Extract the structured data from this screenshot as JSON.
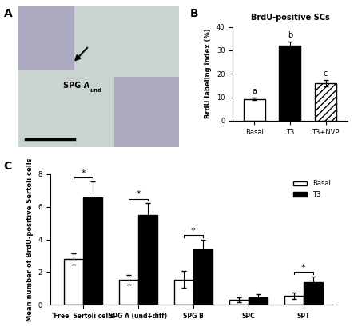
{
  "panel_labels": [
    "A",
    "B",
    "C"
  ],
  "image_panel": {
    "label": "SPG A",
    "label_subscript": "und"
  },
  "chart_data": [
    {
      "type": "bar",
      "title": "BrdU-positive SCs",
      "y_label": "BrdU labeling index (%)",
      "categories": [
        "Basal",
        "T3",
        "T3+NVP"
      ],
      "values": [
        9.3,
        32,
        16
      ],
      "errors": [
        0.6,
        1.8,
        1.5
      ],
      "annotations": [
        "a",
        "b",
        "c"
      ],
      "colors": [
        "#ffffff",
        "#000000",
        "#ffffff"
      ],
      "ylim": [
        0,
        40
      ],
      "yticks": [
        0,
        10,
        20,
        30,
        40
      ]
    },
    {
      "type": "bar",
      "y_label": "Mean number of BrdU-positive Sertoli cells",
      "categories": [
        "'Free' Sertoli cells",
        "SPG A (und+diff)",
        "SPG B",
        "SPC",
        "SPT"
      ],
      "series": [
        {
          "name": "Basal",
          "color": "#ffffff",
          "values": [
            2.8,
            1.55,
            1.55,
            0.3,
            0.55
          ],
          "errors": [
            0.35,
            0.3,
            0.5,
            0.15,
            0.2
          ]
        },
        {
          "name": "T3",
          "color": "#000000",
          "values": [
            6.55,
            5.5,
            3.4,
            0.45,
            1.4
          ],
          "errors": [
            1.0,
            0.75,
            0.6,
            0.2,
            0.35
          ]
        }
      ],
      "significance": [
        "*",
        "*",
        "*",
        null,
        "*"
      ],
      "legend": "upper right",
      "ylim": [
        0,
        8
      ],
      "yticks": [
        0,
        2,
        4,
        6,
        8
      ]
    }
  ]
}
